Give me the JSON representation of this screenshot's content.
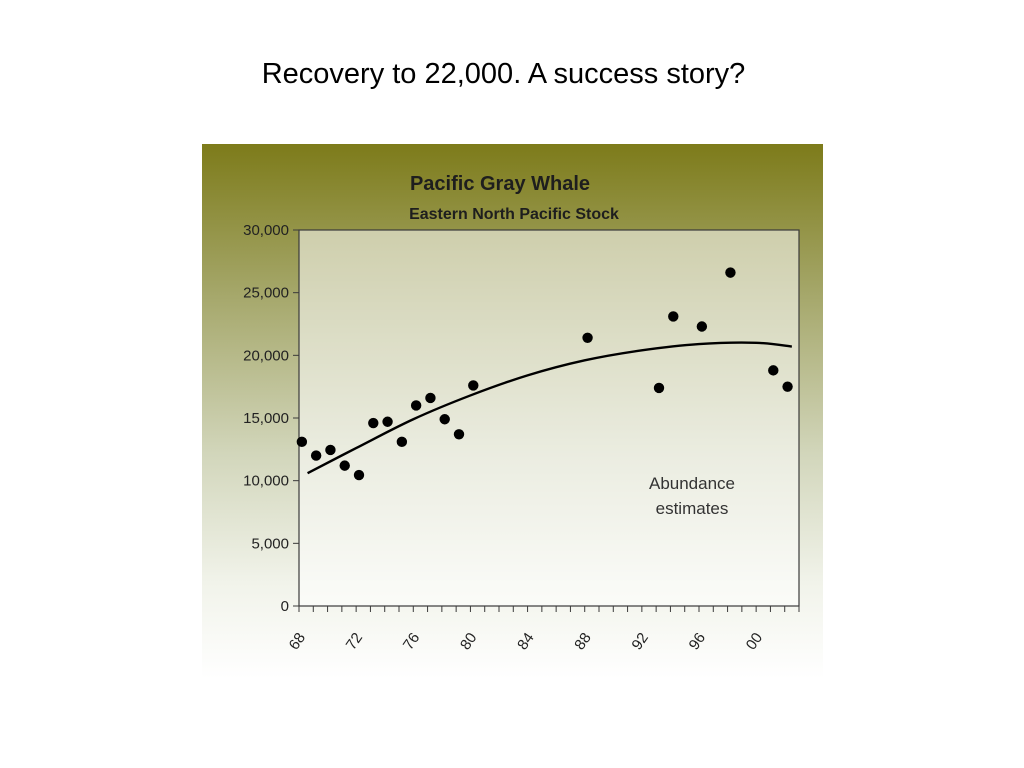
{
  "slide": {
    "title": "Recovery to 22,000. A success story?"
  },
  "chart_data": {
    "type": "scatter",
    "title": "Pacific Gray Whale",
    "subtitle": "Eastern North Pacific Stock",
    "xlabel": "",
    "ylabel": "",
    "xlim": [
      1968,
      2003
    ],
    "ylim": [
      0,
      30000
    ],
    "x_ticks": [
      {
        "value": 1968,
        "label": "68"
      },
      {
        "value": 1972,
        "label": "72"
      },
      {
        "value": 1976,
        "label": "76"
      },
      {
        "value": 1980,
        "label": "80"
      },
      {
        "value": 1984,
        "label": "84"
      },
      {
        "value": 1988,
        "label": "88"
      },
      {
        "value": 1992,
        "label": "92"
      },
      {
        "value": 1996,
        "label": "96"
      },
      {
        "value": 2000,
        "label": "00"
      }
    ],
    "y_ticks": [
      {
        "value": 0,
        "label": "0"
      },
      {
        "value": 5000,
        "label": "5,000"
      },
      {
        "value": 10000,
        "label": "10,000"
      },
      {
        "value": 15000,
        "label": "15,000"
      },
      {
        "value": 20000,
        "label": "20,000"
      },
      {
        "value": 25000,
        "label": "25,000"
      },
      {
        "value": 30000,
        "label": "30,000"
      }
    ],
    "grid": false,
    "annotation": [
      "Abundance",
      "estimates"
    ],
    "series": [
      {
        "kind": "points",
        "color": "#000000",
        "points": [
          {
            "x": 1968.2,
            "y": 13100
          },
          {
            "x": 1969.2,
            "y": 12000
          },
          {
            "x": 1970.2,
            "y": 12450
          },
          {
            "x": 1971.2,
            "y": 11200
          },
          {
            "x": 1972.2,
            "y": 10450
          },
          {
            "x": 1973.2,
            "y": 14600
          },
          {
            "x": 1974.2,
            "y": 14700
          },
          {
            "x": 1975.2,
            "y": 13100
          },
          {
            "x": 1976.2,
            "y": 16000
          },
          {
            "x": 1977.2,
            "y": 16600
          },
          {
            "x": 1978.2,
            "y": 14900
          },
          {
            "x": 1979.2,
            "y": 13700
          },
          {
            "x": 1980.2,
            "y": 17600
          },
          {
            "x": 1988.2,
            "y": 21400
          },
          {
            "x": 1993.2,
            "y": 17400
          },
          {
            "x": 1994.2,
            "y": 23100
          },
          {
            "x": 1996.2,
            "y": 22300
          },
          {
            "x": 1998.2,
            "y": 26600
          },
          {
            "x": 2001.2,
            "y": 18800
          },
          {
            "x": 2002.2,
            "y": 17500
          }
        ]
      },
      {
        "kind": "curve",
        "color": "#000000",
        "points": [
          {
            "x": 1968.6,
            "y": 10600
          },
          {
            "x": 1972,
            "y": 12600
          },
          {
            "x": 1976,
            "y": 14900
          },
          {
            "x": 1980,
            "y": 16800
          },
          {
            "x": 1984,
            "y": 18400
          },
          {
            "x": 1988,
            "y": 19600
          },
          {
            "x": 1992,
            "y": 20400
          },
          {
            "x": 1996,
            "y": 20900
          },
          {
            "x": 2000,
            "y": 21000
          },
          {
            "x": 2002.5,
            "y": 20700
          }
        ]
      }
    ]
  }
}
